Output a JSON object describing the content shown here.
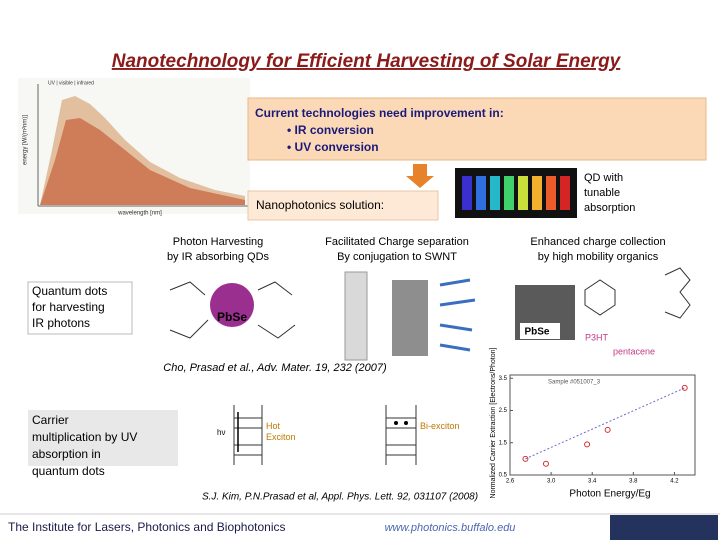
{
  "title": "Nanotechnology for Efficient Harvesting of Solar Energy",
  "spectrum": {
    "bands": "UV | visible | infrared",
    "y_label": "energy [W/(m²nm)]",
    "x_label": "wavelength [nm]"
  },
  "callout": {
    "heading": "Current technologies need improvement in:",
    "items": [
      "• IR conversion",
      "• UV conversion"
    ]
  },
  "solution": "Nanophotonics solution:",
  "qd_note": "QD with tunable absorption",
  "columns": [
    {
      "line1": "Photon Harvesting",
      "line2": "by IR absorbing QDs"
    },
    {
      "line1": "Facilitated Charge separation",
      "line2": "By conjugation to SWNT"
    },
    {
      "line1": "Enhanced charge collection",
      "line2": "by high mobility organics"
    }
  ],
  "image_labels": {
    "pbse": "PbSe",
    "p3ht": "P3HT",
    "pentacene": "pentacene"
  },
  "ir_box": "Quantum dots for harvesting IR photons",
  "citation1": "Cho, Prasad et al., Adv. Mater. 19, 232 (2007)",
  "uv_box": "Carrier multiplication by UV absorption in quantum dots",
  "diagram": {
    "photon": "hν",
    "hot": "Hot Exciton",
    "bi": "Bi-exciton"
  },
  "plot": {
    "y_label": "Normalized Carrier Extraction [Electrons/Photon]",
    "x_label": "Photon Energy/Eg",
    "legend": "Sample #051007_3",
    "xlim": [
      2.6,
      4.4
    ],
    "ylim": [
      0.5,
      3.6
    ],
    "xticks": [
      {
        "value": 2.6,
        "label": "2.6"
      },
      {
        "value": 3,
        "label": "3.0"
      },
      {
        "value": 3.4,
        "label": "3.4"
      },
      {
        "value": 3.8,
        "label": "3.8"
      },
      {
        "value": 4.2,
        "label": "4.2"
      }
    ],
    "yticks": [
      {
        "value": 0.5,
        "label": "0.5"
      },
      {
        "value": 1.5,
        "label": "1.5"
      },
      {
        "value": 2.5,
        "label": "2.5"
      },
      {
        "value": 3.5,
        "label": "3.5"
      }
    ],
    "x": [
      2.75,
      2.95,
      3.35,
      3.55,
      4.3
    ],
    "values": [
      1.0,
      0.85,
      1.45,
      1.9,
      3.2
    ]
  },
  "citation2": "S.J. Kim, P.N.Prasad et al, Appl. Phys. Lett. 92, 031107 (2008)",
  "footer": {
    "institute": "The Institute for Lasers, Photonics and Biophotonics",
    "url": "www.photonics.buffalo.edu"
  }
}
